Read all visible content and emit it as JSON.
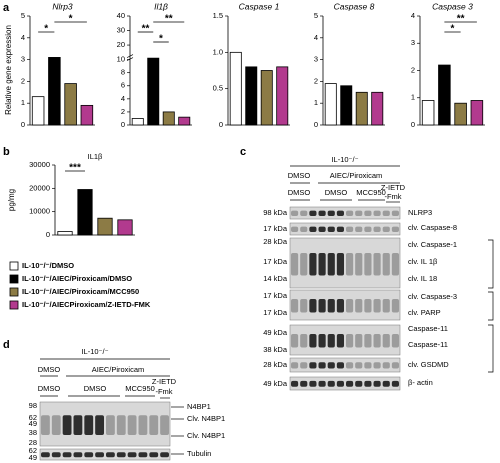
{
  "panel_labels": [
    "a",
    "b",
    "c",
    "d"
  ],
  "legend": [
    {
      "name": "IL-10⁻/⁻/DMSO",
      "color": "#ffffff"
    },
    {
      "name": "IL-10⁻/⁻/AIEC/Piroxicam/DMSO",
      "color": "#000000"
    },
    {
      "name": "IL-10⁻/⁻/AIEC/Piroxicam/MCC950",
      "color": "#8c7b45"
    },
    {
      "name": "IL-10⁻/⁻/AIECPiroxicam/Z-IETD-FMK",
      "color": "#b23a8e"
    }
  ],
  "chart_data": [
    {
      "type": "bar",
      "title": "Nlrp3",
      "ylabel": "Relative gene expression",
      "values": [
        1.3,
        3.1,
        1.9,
        0.9
      ],
      "ylim": [
        0,
        5
      ],
      "yticks": [
        0,
        1,
        2,
        3,
        4,
        5
      ],
      "significance": [
        {
          "text": "*",
          "span": [
            1,
            3
          ]
        },
        {
          "text": "*",
          "span": [
            0,
            1
          ]
        }
      ]
    },
    {
      "type": "bar",
      "title": "Il1β",
      "values": [
        1,
        11,
        2,
        1.2
      ],
      "ylim": [
        0,
        40
      ],
      "axis_break": 10,
      "yticks": [
        0,
        2,
        4,
        6,
        8,
        10,
        20,
        30,
        40
      ],
      "significance": [
        {
          "text": "**",
          "span": [
            1,
            3
          ]
        },
        {
          "text": "**",
          "span": [
            0,
            1
          ]
        },
        {
          "text": "*",
          "span": [
            1,
            2
          ]
        }
      ]
    },
    {
      "type": "bar",
      "title": "Caspase 1",
      "values": [
        1.0,
        0.8,
        0.75,
        0.8
      ],
      "ylim": [
        0,
        1.5
      ],
      "yticks": [
        0,
        0.5,
        {
          "value": 1,
          "label": "1.0"
        },
        1.5
      ],
      "significance": []
    },
    {
      "type": "bar",
      "title": "Caspase 8",
      "values": [
        1.9,
        1.8,
        1.5,
        1.5
      ],
      "ylim": [
        0,
        5
      ],
      "yticks": [
        0,
        1,
        2,
        3,
        4,
        5
      ],
      "significance": []
    },
    {
      "type": "bar",
      "title": "Caspase 3",
      "values": [
        0.9,
        2.2,
        0.8,
        0.9
      ],
      "ylim": [
        0,
        4
      ],
      "yticks": [
        0,
        1,
        2,
        3,
        4
      ],
      "significance": [
        {
          "text": "**",
          "span": [
            1,
            3
          ]
        },
        {
          "text": "*",
          "span": [
            1,
            2
          ]
        }
      ]
    },
    {
      "type": "bar",
      "title": "IL1β",
      "ylabel": "pg/mg",
      "values": [
        1500,
        19500,
        7200,
        6500
      ],
      "ylim": [
        0,
        30000
      ],
      "yticks": [
        0,
        10000,
        20000,
        30000
      ],
      "significance": [
        {
          "text": "***",
          "span": [
            0,
            1
          ]
        }
      ]
    }
  ],
  "blot_c": {
    "header": "IL-10⁻/⁻",
    "treatments": [
      "DMSO",
      "AIEC/Piroxicam"
    ],
    "inhibitors": [
      "DMSO",
      "DMSO",
      "MCC950",
      "Z-IETD",
      "-Fmk"
    ],
    "markers": [
      "98 kDa",
      "17 kDa",
      "28 kDa",
      "17 kDa",
      "14 kDa",
      "17 kDa",
      "17 kDa",
      "49 kDa",
      "38 kDa",
      "28 kDa",
      "49 kDa"
    ],
    "targets": [
      "NLRP3",
      "clv. Caspase-8",
      "clv. Caspase-1",
      "clv. IL 1β",
      "clv. IL 18",
      "clv. Caspase-3",
      "clv. PARP",
      "Caspase-11",
      "Caspase-11",
      "clv. GSDMD",
      "β- actin"
    ]
  },
  "blot_d": {
    "header": "IL-10⁻/⁻",
    "treatments": [
      "DMSO",
      "AIEC/Piroxicam"
    ],
    "inhibitors": [
      "DMSO",
      "DMSO",
      "MCC950",
      "Z-IETD",
      "-Fmk"
    ],
    "markers": [
      "98",
      "62",
      "49",
      "38",
      "28",
      "62",
      "49"
    ],
    "targets": [
      "N4BP1",
      "Clv. N4BP1",
      "Clv. N4BP1",
      "Tubulin"
    ]
  }
}
